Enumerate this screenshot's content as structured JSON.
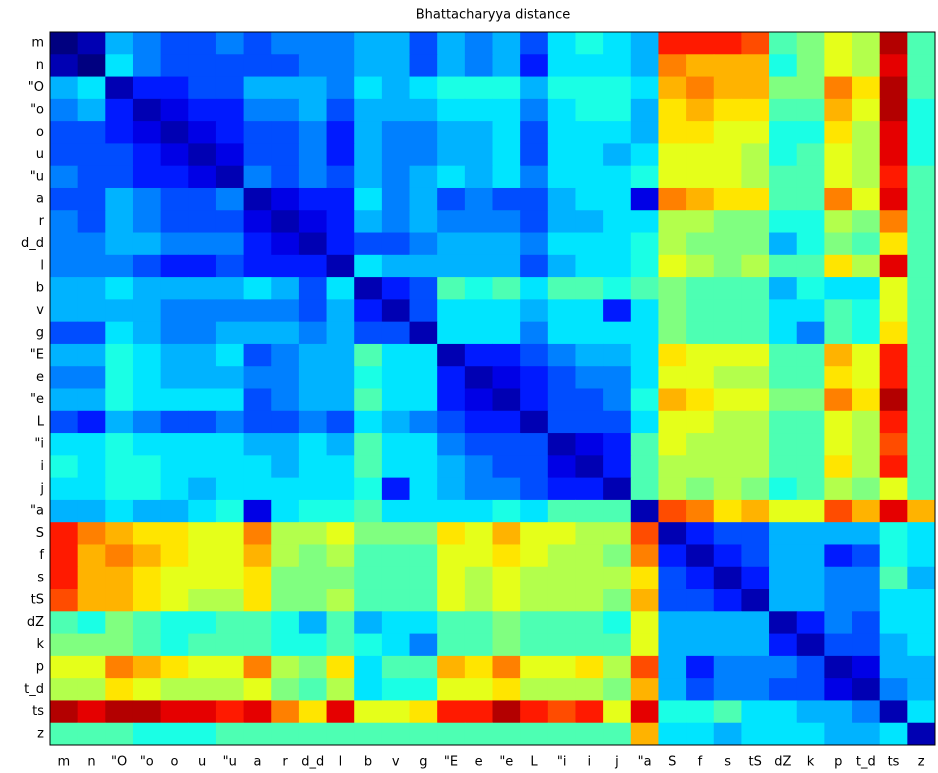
{
  "chart_data": {
    "type": "heatmap",
    "title": "Bhattacharyya distance",
    "colormap": "jet",
    "zlim": [
      0,
      1
    ],
    "categories": [
      "m",
      "n",
      "\"O",
      "\"o",
      "o",
      "u",
      "\"u",
      "a",
      "r",
      "d_d",
      "l",
      "b",
      "v",
      "g",
      "\"E",
      "e",
      "\"e",
      "L",
      "\"i",
      "i",
      "j",
      "\"a",
      "S",
      "f",
      "s",
      "tS",
      "dZ",
      "k",
      "p",
      "t_d",
      "ts",
      "z"
    ],
    "values": [
      [
        0,
        0.05,
        0.3,
        0.25,
        0.2,
        0.2,
        0.25,
        0.2,
        0.25,
        0.25,
        0.25,
        0.3,
        0.3,
        0.2,
        0.3,
        0.25,
        0.3,
        0.2,
        0.35,
        0.4,
        0.35,
        0.3,
        0.85,
        0.85,
        0.85,
        0.8,
        0.45,
        0.5,
        0.6,
        0.55,
        0.95,
        0.45
      ],
      [
        0.05,
        0,
        0.35,
        0.25,
        0.2,
        0.2,
        0.2,
        0.2,
        0.2,
        0.25,
        0.25,
        0.3,
        0.3,
        0.2,
        0.3,
        0.25,
        0.3,
        0.15,
        0.35,
        0.35,
        0.35,
        0.3,
        0.75,
        0.7,
        0.7,
        0.7,
        0.4,
        0.5,
        0.6,
        0.55,
        0.9,
        0.45
      ],
      [
        0.3,
        0.35,
        0.05,
        0.15,
        0.15,
        0.2,
        0.2,
        0.3,
        0.3,
        0.3,
        0.25,
        0.35,
        0.3,
        0.35,
        0.4,
        0.4,
        0.4,
        0.3,
        0.4,
        0.4,
        0.4,
        0.35,
        0.7,
        0.75,
        0.7,
        0.7,
        0.5,
        0.5,
        0.75,
        0.65,
        0.95,
        0.45
      ],
      [
        0.25,
        0.3,
        0.15,
        0.05,
        0.1,
        0.15,
        0.15,
        0.25,
        0.25,
        0.3,
        0.2,
        0.3,
        0.3,
        0.3,
        0.35,
        0.35,
        0.35,
        0.25,
        0.35,
        0.4,
        0.4,
        0.3,
        0.65,
        0.7,
        0.65,
        0.65,
        0.45,
        0.45,
        0.7,
        0.6,
        0.95,
        0.4
      ],
      [
        0.2,
        0.2,
        0.15,
        0.1,
        0.05,
        0.1,
        0.15,
        0.2,
        0.2,
        0.25,
        0.15,
        0.3,
        0.25,
        0.25,
        0.3,
        0.3,
        0.35,
        0.2,
        0.35,
        0.35,
        0.35,
        0.3,
        0.65,
        0.65,
        0.6,
        0.6,
        0.4,
        0.4,
        0.65,
        0.55,
        0.9,
        0.4
      ],
      [
        0.2,
        0.2,
        0.2,
        0.15,
        0.1,
        0.05,
        0.1,
        0.2,
        0.2,
        0.25,
        0.15,
        0.3,
        0.25,
        0.25,
        0.3,
        0.3,
        0.35,
        0.2,
        0.35,
        0.35,
        0.3,
        0.35,
        0.6,
        0.6,
        0.6,
        0.55,
        0.4,
        0.45,
        0.6,
        0.55,
        0.9,
        0.4
      ],
      [
        0.25,
        0.2,
        0.2,
        0.15,
        0.15,
        0.1,
        0.05,
        0.25,
        0.2,
        0.25,
        0.2,
        0.3,
        0.25,
        0.3,
        0.35,
        0.3,
        0.35,
        0.25,
        0.35,
        0.35,
        0.35,
        0.4,
        0.6,
        0.6,
        0.6,
        0.55,
        0.45,
        0.45,
        0.6,
        0.55,
        0.85,
        0.45
      ],
      [
        0.2,
        0.2,
        0.3,
        0.25,
        0.2,
        0.2,
        0.25,
        0.05,
        0.1,
        0.15,
        0.15,
        0.35,
        0.25,
        0.3,
        0.2,
        0.25,
        0.2,
        0.2,
        0.3,
        0.35,
        0.35,
        0.1,
        0.75,
        0.7,
        0.65,
        0.65,
        0.45,
        0.45,
        0.75,
        0.6,
        0.9,
        0.45
      ],
      [
        0.25,
        0.2,
        0.3,
        0.25,
        0.2,
        0.2,
        0.2,
        0.1,
        0.05,
        0.1,
        0.15,
        0.3,
        0.25,
        0.3,
        0.25,
        0.25,
        0.25,
        0.2,
        0.3,
        0.3,
        0.35,
        0.35,
        0.55,
        0.55,
        0.5,
        0.5,
        0.4,
        0.4,
        0.55,
        0.5,
        0.75,
        0.45
      ],
      [
        0.25,
        0.25,
        0.3,
        0.3,
        0.25,
        0.25,
        0.25,
        0.15,
        0.1,
        0.05,
        0.15,
        0.2,
        0.2,
        0.25,
        0.3,
        0.3,
        0.3,
        0.25,
        0.35,
        0.35,
        0.35,
        0.4,
        0.55,
        0.5,
        0.5,
        0.5,
        0.3,
        0.4,
        0.5,
        0.45,
        0.65,
        0.45
      ],
      [
        0.25,
        0.25,
        0.25,
        0.2,
        0.15,
        0.15,
        0.2,
        0.15,
        0.15,
        0.15,
        0.05,
        0.35,
        0.3,
        0.3,
        0.3,
        0.3,
        0.3,
        0.2,
        0.3,
        0.35,
        0.35,
        0.4,
        0.6,
        0.55,
        0.5,
        0.55,
        0.45,
        0.45,
        0.65,
        0.55,
        0.9,
        0.45
      ],
      [
        0.3,
        0.3,
        0.35,
        0.3,
        0.3,
        0.3,
        0.3,
        0.35,
        0.3,
        0.2,
        0.35,
        0.05,
        0.15,
        0.2,
        0.45,
        0.4,
        0.45,
        0.35,
        0.45,
        0.45,
        0.4,
        0.45,
        0.5,
        0.45,
        0.45,
        0.45,
        0.3,
        0.4,
        0.35,
        0.35,
        0.6,
        0.45
      ],
      [
        0.3,
        0.3,
        0.3,
        0.3,
        0.25,
        0.25,
        0.25,
        0.25,
        0.25,
        0.2,
        0.3,
        0.15,
        0.05,
        0.2,
        0.35,
        0.35,
        0.35,
        0.3,
        0.35,
        0.35,
        0.15,
        0.35,
        0.5,
        0.45,
        0.45,
        0.45,
        0.35,
        0.35,
        0.45,
        0.4,
        0.6,
        0.45
      ],
      [
        0.2,
        0.2,
        0.35,
        0.3,
        0.25,
        0.25,
        0.3,
        0.3,
        0.3,
        0.25,
        0.3,
        0.2,
        0.2,
        0.05,
        0.35,
        0.35,
        0.35,
        0.25,
        0.35,
        0.35,
        0.35,
        0.35,
        0.5,
        0.45,
        0.45,
        0.45,
        0.35,
        0.25,
        0.45,
        0.4,
        0.65,
        0.45
      ],
      [
        0.3,
        0.3,
        0.4,
        0.35,
        0.3,
        0.3,
        0.35,
        0.2,
        0.25,
        0.3,
        0.3,
        0.45,
        0.35,
        0.35,
        0.05,
        0.15,
        0.15,
        0.2,
        0.25,
        0.3,
        0.3,
        0.35,
        0.65,
        0.6,
        0.6,
        0.6,
        0.45,
        0.45,
        0.7,
        0.6,
        0.85,
        0.45
      ],
      [
        0.25,
        0.25,
        0.4,
        0.35,
        0.3,
        0.3,
        0.3,
        0.25,
        0.25,
        0.3,
        0.3,
        0.4,
        0.35,
        0.35,
        0.15,
        0.05,
        0.1,
        0.15,
        0.2,
        0.25,
        0.25,
        0.35,
        0.6,
        0.6,
        0.55,
        0.55,
        0.45,
        0.45,
        0.65,
        0.6,
        0.85,
        0.45
      ],
      [
        0.3,
        0.3,
        0.4,
        0.35,
        0.35,
        0.35,
        0.35,
        0.2,
        0.25,
        0.3,
        0.3,
        0.45,
        0.35,
        0.35,
        0.15,
        0.1,
        0.05,
        0.15,
        0.2,
        0.2,
        0.25,
        0.4,
        0.7,
        0.65,
        0.6,
        0.6,
        0.5,
        0.5,
        0.75,
        0.65,
        0.95,
        0.45
      ],
      [
        0.2,
        0.15,
        0.3,
        0.25,
        0.2,
        0.2,
        0.25,
        0.2,
        0.2,
        0.25,
        0.2,
        0.35,
        0.3,
        0.25,
        0.2,
        0.15,
        0.15,
        0.05,
        0.2,
        0.2,
        0.2,
        0.35,
        0.6,
        0.6,
        0.55,
        0.55,
        0.45,
        0.45,
        0.6,
        0.55,
        0.85,
        0.45
      ],
      [
        0.35,
        0.35,
        0.4,
        0.35,
        0.35,
        0.35,
        0.35,
        0.3,
        0.3,
        0.35,
        0.3,
        0.45,
        0.35,
        0.35,
        0.25,
        0.2,
        0.2,
        0.2,
        0.05,
        0.1,
        0.15,
        0.45,
        0.6,
        0.55,
        0.55,
        0.55,
        0.45,
        0.45,
        0.6,
        0.55,
        0.8,
        0.45
      ],
      [
        0.4,
        0.35,
        0.4,
        0.4,
        0.35,
        0.35,
        0.35,
        0.35,
        0.3,
        0.35,
        0.35,
        0.45,
        0.35,
        0.35,
        0.3,
        0.25,
        0.2,
        0.2,
        0.1,
        0.05,
        0.15,
        0.45,
        0.55,
        0.55,
        0.55,
        0.55,
        0.45,
        0.45,
        0.65,
        0.55,
        0.85,
        0.45
      ],
      [
        0.35,
        0.35,
        0.4,
        0.4,
        0.35,
        0.3,
        0.35,
        0.35,
        0.35,
        0.35,
        0.35,
        0.4,
        0.15,
        0.35,
        0.3,
        0.25,
        0.25,
        0.2,
        0.15,
        0.15,
        0.05,
        0.45,
        0.55,
        0.5,
        0.55,
        0.5,
        0.4,
        0.45,
        0.55,
        0.5,
        0.6,
        0.45
      ],
      [
        0.3,
        0.3,
        0.35,
        0.3,
        0.3,
        0.35,
        0.4,
        0.1,
        0.35,
        0.4,
        0.4,
        0.45,
        0.35,
        0.35,
        0.35,
        0.35,
        0.4,
        0.35,
        0.45,
        0.45,
        0.45,
        0.05,
        0.8,
        0.75,
        0.65,
        0.7,
        0.6,
        0.6,
        0.8,
        0.7,
        0.9,
        0.7
      ],
      [
        0.85,
        0.75,
        0.7,
        0.65,
        0.65,
        0.6,
        0.6,
        0.75,
        0.55,
        0.55,
        0.6,
        0.5,
        0.5,
        0.5,
        0.65,
        0.6,
        0.7,
        0.6,
        0.6,
        0.55,
        0.55,
        0.8,
        0.05,
        0.15,
        0.2,
        0.2,
        0.3,
        0.3,
        0.3,
        0.3,
        0.4,
        0.35
      ],
      [
        0.85,
        0.7,
        0.75,
        0.7,
        0.65,
        0.6,
        0.6,
        0.7,
        0.55,
        0.5,
        0.55,
        0.45,
        0.45,
        0.45,
        0.6,
        0.6,
        0.65,
        0.6,
        0.55,
        0.55,
        0.5,
        0.75,
        0.15,
        0.05,
        0.15,
        0.2,
        0.3,
        0.3,
        0.15,
        0.2,
        0.4,
        0.35
      ],
      [
        0.85,
        0.7,
        0.7,
        0.65,
        0.6,
        0.6,
        0.6,
        0.65,
        0.5,
        0.5,
        0.5,
        0.45,
        0.45,
        0.45,
        0.6,
        0.55,
        0.6,
        0.55,
        0.55,
        0.55,
        0.55,
        0.65,
        0.2,
        0.15,
        0.05,
        0.15,
        0.3,
        0.3,
        0.25,
        0.25,
        0.45,
        0.3
      ],
      [
        0.8,
        0.7,
        0.7,
        0.65,
        0.6,
        0.55,
        0.55,
        0.65,
        0.5,
        0.5,
        0.55,
        0.45,
        0.45,
        0.45,
        0.6,
        0.55,
        0.6,
        0.55,
        0.55,
        0.55,
        0.5,
        0.7,
        0.2,
        0.2,
        0.15,
        0.05,
        0.3,
        0.3,
        0.25,
        0.25,
        0.35,
        0.35
      ],
      [
        0.45,
        0.4,
        0.5,
        0.45,
        0.4,
        0.4,
        0.45,
        0.45,
        0.4,
        0.3,
        0.45,
        0.3,
        0.35,
        0.35,
        0.45,
        0.45,
        0.5,
        0.45,
        0.45,
        0.45,
        0.4,
        0.6,
        0.3,
        0.3,
        0.3,
        0.3,
        0.05,
        0.15,
        0.25,
        0.2,
        0.35,
        0.35
      ],
      [
        0.5,
        0.5,
        0.5,
        0.45,
        0.4,
        0.45,
        0.45,
        0.45,
        0.4,
        0.4,
        0.45,
        0.4,
        0.35,
        0.25,
        0.45,
        0.45,
        0.5,
        0.45,
        0.45,
        0.45,
        0.45,
        0.6,
        0.3,
        0.3,
        0.3,
        0.3,
        0.15,
        0.05,
        0.2,
        0.2,
        0.3,
        0.35
      ],
      [
        0.6,
        0.6,
        0.75,
        0.7,
        0.65,
        0.6,
        0.6,
        0.75,
        0.55,
        0.5,
        0.65,
        0.35,
        0.45,
        0.45,
        0.7,
        0.65,
        0.75,
        0.6,
        0.6,
        0.65,
        0.55,
        0.8,
        0.3,
        0.15,
        0.25,
        0.25,
        0.25,
        0.2,
        0.05,
        0.1,
        0.3,
        0.3
      ],
      [
        0.55,
        0.55,
        0.65,
        0.6,
        0.55,
        0.55,
        0.55,
        0.6,
        0.5,
        0.45,
        0.55,
        0.35,
        0.4,
        0.4,
        0.6,
        0.6,
        0.65,
        0.55,
        0.55,
        0.55,
        0.5,
        0.7,
        0.3,
        0.2,
        0.25,
        0.25,
        0.2,
        0.2,
        0.1,
        0.05,
        0.25,
        0.3
      ],
      [
        0.95,
        0.9,
        0.95,
        0.95,
        0.9,
        0.9,
        0.85,
        0.9,
        0.75,
        0.65,
        0.9,
        0.6,
        0.6,
        0.65,
        0.85,
        0.85,
        0.95,
        0.85,
        0.8,
        0.85,
        0.6,
        0.9,
        0.4,
        0.4,
        0.45,
        0.35,
        0.35,
        0.3,
        0.3,
        0.25,
        0.05,
        0.35
      ],
      [
        0.45,
        0.45,
        0.45,
        0.4,
        0.4,
        0.4,
        0.45,
        0.45,
        0.45,
        0.45,
        0.45,
        0.45,
        0.45,
        0.45,
        0.45,
        0.45,
        0.45,
        0.45,
        0.45,
        0.45,
        0.45,
        0.7,
        0.35,
        0.35,
        0.3,
        0.35,
        0.35,
        0.35,
        0.3,
        0.3,
        0.35,
        0.05
      ]
    ]
  }
}
